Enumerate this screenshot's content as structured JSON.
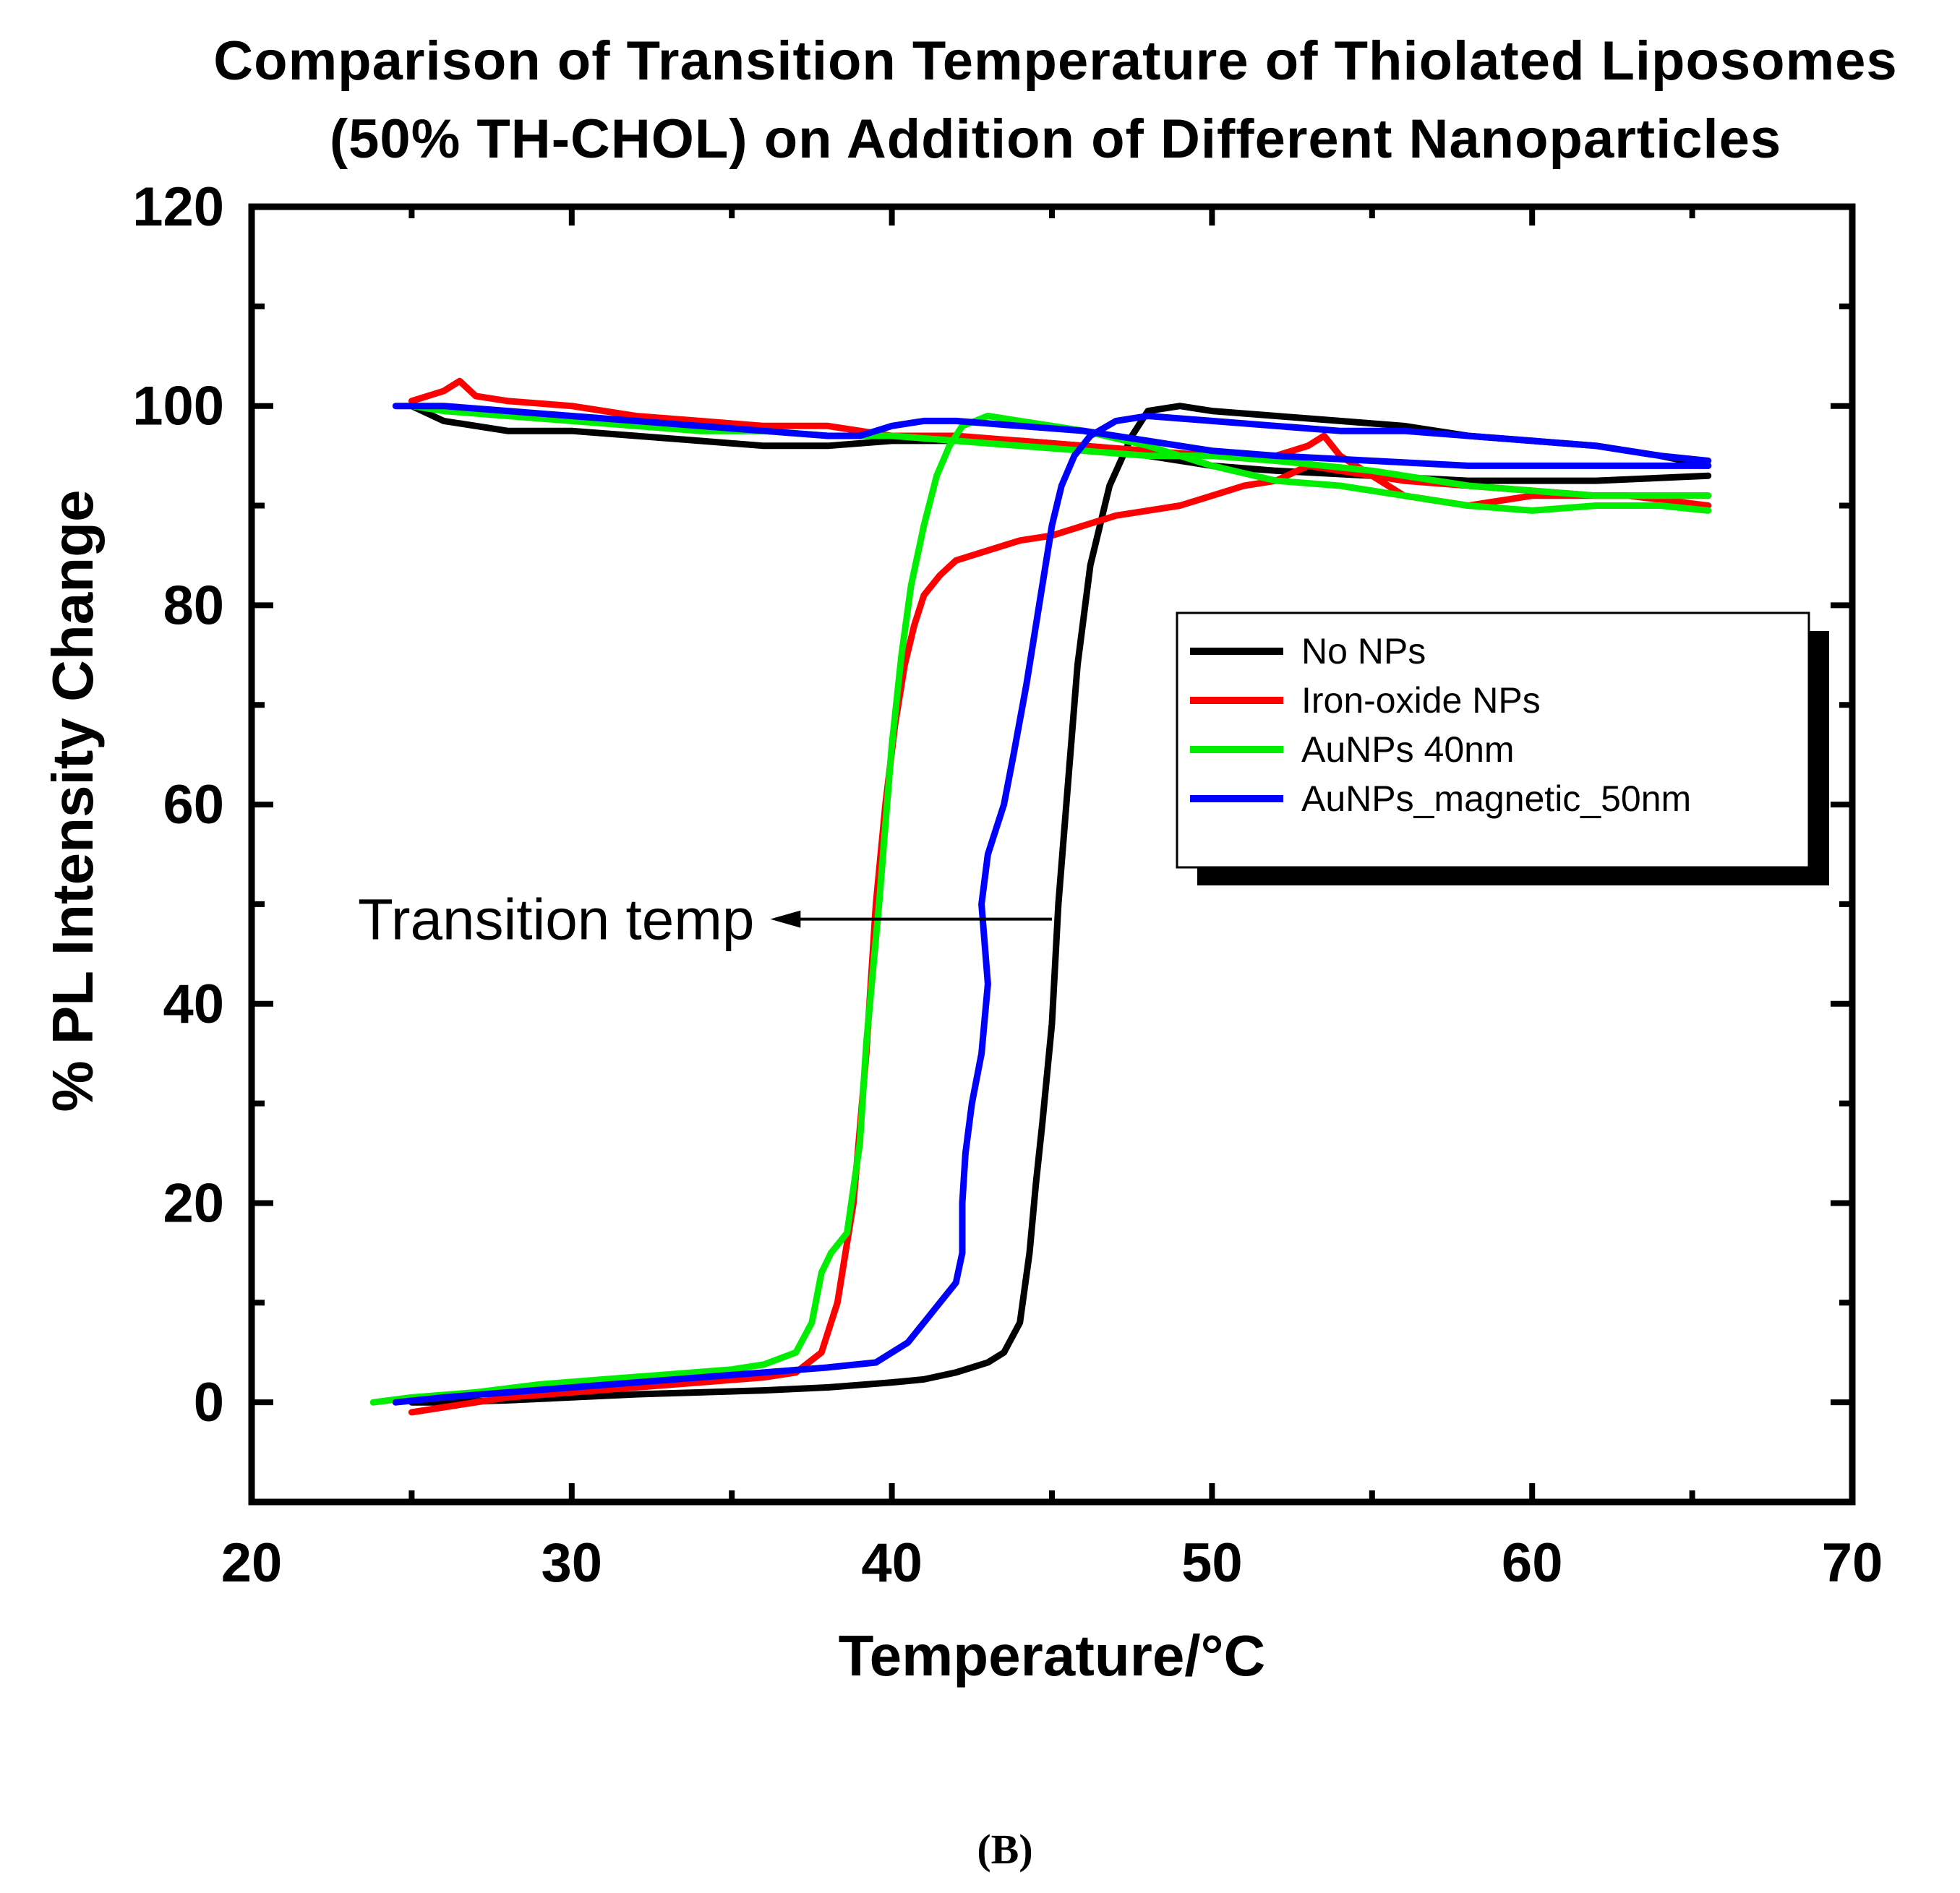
{
  "chart_data": {
    "type": "line",
    "title": [
      "Comparison of Transition Temperature of Thiolated Liposomes",
      "(50% TH-CHOL) on Addition of Different Nanoparticles"
    ],
    "xlabel": "Temperature/°C",
    "ylabel": "% PL Intensity Change",
    "xlim": [
      20,
      70
    ],
    "ylim": [
      -10,
      120
    ],
    "xticks": [
      20,
      30,
      40,
      50,
      60,
      70
    ],
    "yticks": [
      0,
      20,
      40,
      60,
      80,
      100,
      120
    ],
    "legend_position": "upper-right",
    "annotation": {
      "text": "Transition temp",
      "arrow_from": [
        45.0,
        48.5
      ],
      "arrow_to": [
        36.2,
        48.5
      ]
    },
    "caption": "(B)",
    "series": [
      {
        "name": "No NPs",
        "color": "#000000",
        "heating": {
          "x": [
            25,
            26,
            28,
            30,
            32,
            34,
            36,
            38,
            40,
            41,
            42,
            42.5,
            43,
            43.5,
            44,
            44.3,
            44.5,
            44.7,
            45.0,
            45.2,
            45.5,
            45.8,
            46.2,
            46.8,
            47.5,
            48,
            49,
            50,
            52,
            54,
            56,
            58,
            60,
            62,
            64,
            65.5
          ],
          "y": [
            0,
            0,
            0.2,
            0.5,
            0.8,
            1,
            1.2,
            1.5,
            2,
            2.3,
            3,
            3.5,
            4,
            5,
            8,
            15,
            22,
            28,
            38,
            50,
            62,
            74,
            84,
            92,
            97,
            99.5,
            100,
            99.5,
            99,
            98.5,
            98,
            97,
            96.5,
            96,
            95,
            94
          ]
        },
        "cooling": {
          "x": [
            65.5,
            62,
            58,
            55,
            52,
            50,
            48,
            46,
            44,
            42,
            40,
            38,
            36,
            34,
            32,
            30,
            28,
            26,
            25
          ],
          "y": [
            93,
            92.5,
            92.5,
            93,
            93.5,
            94,
            95,
            96,
            96.5,
            96.5,
            96.5,
            96,
            96,
            96.5,
            97,
            97.5,
            97.5,
            98.5,
            100
          ]
        }
      },
      {
        "name": "Iron-oxide NPs",
        "color": "#ff0000",
        "heating": {
          "x": [
            25,
            26,
            28,
            30,
            32,
            34,
            36,
            37,
            37.8,
            38.3,
            38.8,
            39.2,
            39.5,
            39.8,
            40.1,
            40.4,
            40.7,
            41.0,
            41.5,
            42,
            43,
            44,
            45,
            46,
            47,
            48,
            49,
            50,
            51,
            52,
            53,
            54,
            55,
            56,
            58,
            60,
            62,
            64,
            65.5
          ],
          "y": [
            -1,
            -0.5,
            0.5,
            1,
            1.5,
            2,
            2.5,
            3,
            5,
            10,
            20,
            35,
            50,
            60,
            68,
            74,
            78,
            81,
            83,
            84.5,
            85.5,
            86.5,
            87,
            88,
            89,
            89.5,
            90,
            91,
            92,
            92.5,
            94,
            93.5,
            93,
            92.5,
            92,
            91.5,
            91,
            91,
            91
          ]
        },
        "cooling": {
          "x": [
            65.5,
            63,
            60,
            58,
            56,
            54,
            53.5,
            53,
            52,
            50,
            48,
            46,
            44,
            42,
            40,
            38,
            36,
            34,
            32,
            30,
            28,
            27,
            26.5,
            26,
            25
          ],
          "y": [
            90,
            91,
            91,
            90,
            91,
            95,
            97,
            96,
            95,
            95,
            95.5,
            96,
            96.5,
            97,
            97,
            98,
            98,
            98.5,
            99,
            100,
            100.5,
            101,
            102.5,
            101.5,
            100.5
          ]
        }
      },
      {
        "name": "AuNPs 40nm",
        "color": "#00ee00",
        "heating": {
          "x": [
            23.8,
            25,
            27,
            29,
            31,
            33,
            35,
            36,
            37,
            37.5,
            37.8,
            38.1,
            38.6,
            39.0,
            39.2,
            39.4,
            39.6,
            39.8,
            40.0,
            40.3,
            40.6,
            41.0,
            41.4,
            41.8,
            42.2,
            42.6,
            43,
            44,
            45,
            46,
            48,
            50,
            52,
            54,
            56,
            58,
            60,
            62,
            64,
            65.5
          ],
          "y": [
            0,
            0.5,
            1,
            1.8,
            2.3,
            2.8,
            3.3,
            3.8,
            5,
            8,
            13,
            15,
            17,
            26,
            36,
            43,
            50,
            58,
            66,
            75,
            82,
            88,
            93,
            96,
            98,
            98.5,
            99,
            98.5,
            98,
            97.5,
            96,
            94,
            92.5,
            92,
            91,
            90,
            89.5,
            90,
            90,
            89.5
          ]
        },
        "cooling": {
          "x": [
            65.5,
            62,
            58,
            55,
            52,
            50,
            48,
            46,
            44,
            42,
            40,
            38,
            36,
            34,
            32,
            30,
            28,
            26,
            25
          ],
          "y": [
            91,
            91,
            92,
            93.5,
            94.5,
            95,
            95,
            95.5,
            96,
            96.5,
            97,
            97,
            97.5,
            97.5,
            98,
            98.5,
            99,
            99.5,
            100
          ]
        }
      },
      {
        "name": "AuNPs_magnetic_50nm",
        "color": "#0000ff",
        "heating": {
          "x": [
            24.5,
            26,
            28,
            30,
            32,
            34,
            36,
            38,
            39.5,
            40.5,
            41.0,
            41.5,
            42.0,
            42.2,
            42.2,
            42.3,
            42.5,
            42.8,
            43.0,
            42.8,
            43.0,
            43.5,
            43.8,
            44.2,
            44.6,
            45.0,
            45.3,
            45.7,
            46.2,
            47,
            48,
            50,
            52,
            54,
            56,
            58,
            60,
            62,
            64,
            65.5
          ],
          "y": [
            0,
            0.5,
            1,
            1.5,
            2,
            2.5,
            3,
            3.5,
            4,
            6,
            8,
            10,
            12,
            15,
            20,
            25,
            30,
            35,
            42,
            50,
            55,
            60,
            65,
            72,
            80,
            88,
            92,
            95,
            97,
            98.5,
            99,
            98.5,
            98,
            97.5,
            97.5,
            97,
            96.5,
            96,
            95,
            94.5
          ]
        },
        "cooling": {
          "x": [
            65.5,
            62,
            58,
            55,
            52,
            50,
            48,
            46,
            44,
            42,
            41,
            40,
            39,
            38,
            36,
            34,
            32,
            30,
            28,
            26,
            24.5
          ],
          "y": [
            94,
            94,
            94,
            94.5,
            95,
            95.5,
            96.5,
            97.5,
            98,
            98.5,
            98.5,
            98,
            97,
            97,
            97.5,
            98,
            98.5,
            99,
            99.5,
            100,
            100
          ]
        }
      }
    ]
  }
}
